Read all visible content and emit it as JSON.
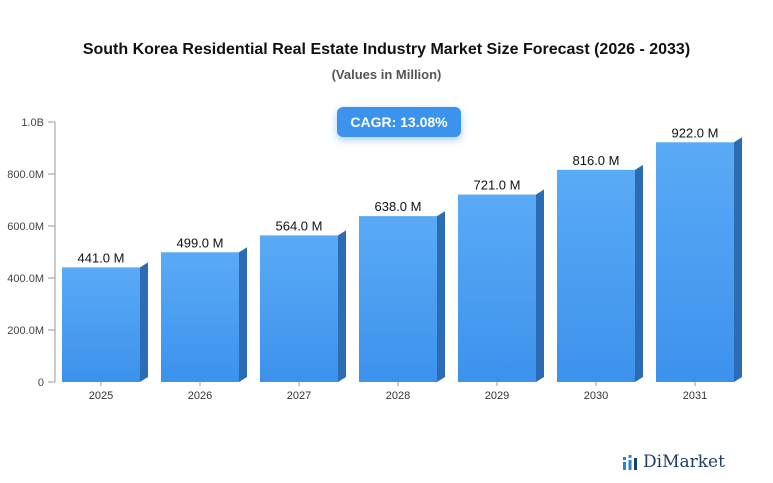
{
  "chart_data": {
    "type": "bar",
    "title": "South Korea Residential Real Estate Industry Market Size Forecast (2026 - 2033)",
    "subtitle": "(Values in Million)",
    "categories": [
      "2025",
      "2026",
      "2027",
      "2028",
      "2029",
      "2030",
      "2031"
    ],
    "values": [
      441.0,
      499.0,
      564.0,
      638.0,
      721.0,
      816.0,
      922.0
    ],
    "value_labels": [
      "441.0 M",
      "499.0 M",
      "564.0 M",
      "638.0 M",
      "721.0 M",
      "816.0 M",
      "922.0 M"
    ],
    "y_ticks": [
      0,
      200,
      400,
      600,
      800,
      1000
    ],
    "y_tick_labels": [
      "0",
      "200.0M",
      "400.0M",
      "600.0M",
      "800.0M",
      "1.0B"
    ],
    "ylim": [
      0,
      1000
    ],
    "xlabel": "",
    "ylabel": "",
    "grid": false,
    "bar_color": "#4da3f5",
    "bar_side_color": "#2b6cb4"
  },
  "badge": {
    "label": "CAGR: 13.08%"
  },
  "logo": {
    "text": "DiMarket"
  }
}
